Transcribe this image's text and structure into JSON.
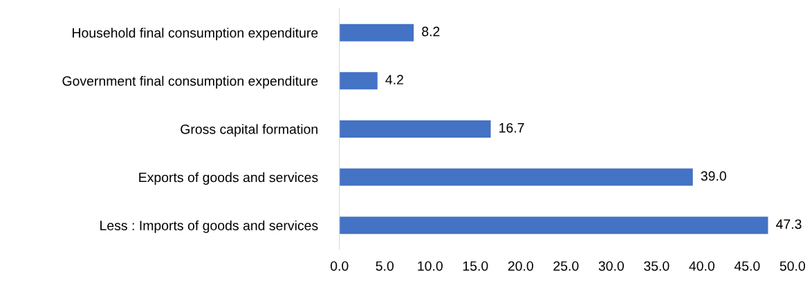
{
  "chart_data": {
    "type": "bar",
    "orientation": "horizontal",
    "categories": [
      "Household final consumption expenditure",
      "Government final consumption expenditure",
      "Gross capital formation",
      "Exports of goods and services",
      "Less : Imports of goods and services"
    ],
    "values": [
      8.2,
      4.2,
      16.7,
      39.0,
      47.3
    ],
    "color": "#4472c4",
    "xlim": [
      0,
      50
    ],
    "xticks": [
      {
        "value": 0,
        "label": "0.0"
      },
      {
        "value": 5,
        "label": "5.0"
      },
      {
        "value": 10,
        "label": "10.0"
      },
      {
        "value": 15,
        "label": "15.0"
      },
      {
        "value": 20,
        "label": "20.0"
      },
      {
        "value": 25,
        "label": "25.0"
      },
      {
        "value": 30,
        "label": "30.0"
      },
      {
        "value": 35,
        "label": "35.0"
      },
      {
        "value": 40,
        "label": "40.0"
      },
      {
        "value": 45,
        "label": "45.0"
      },
      {
        "value": 50,
        "label": "50.0"
      }
    ],
    "value_labels": [
      "8.2",
      "4.2",
      "16.7",
      "39.0",
      "47.3"
    ],
    "grid": false
  }
}
